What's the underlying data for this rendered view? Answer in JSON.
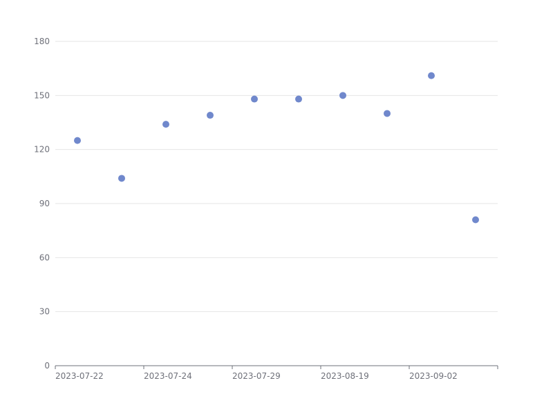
{
  "chart_data": {
    "type": "scatter",
    "x_tick_labels": [
      "2023-07-22",
      "2023-07-24",
      "2023-07-29",
      "2023-08-19",
      "2023-09-02"
    ],
    "y_tick_labels": [
      "0",
      "30",
      "60",
      "90",
      "120",
      "150",
      "180"
    ],
    "ylim": [
      0,
      180
    ],
    "grid": true,
    "series": [
      {
        "values": [
          125,
          104,
          134,
          139,
          148,
          148,
          150,
          140,
          161,
          81
        ]
      }
    ]
  },
  "colors": {
    "point": "#7088cc",
    "grid": "#e6e6e6",
    "axis": "#6e7079",
    "text": "#6e7079"
  }
}
